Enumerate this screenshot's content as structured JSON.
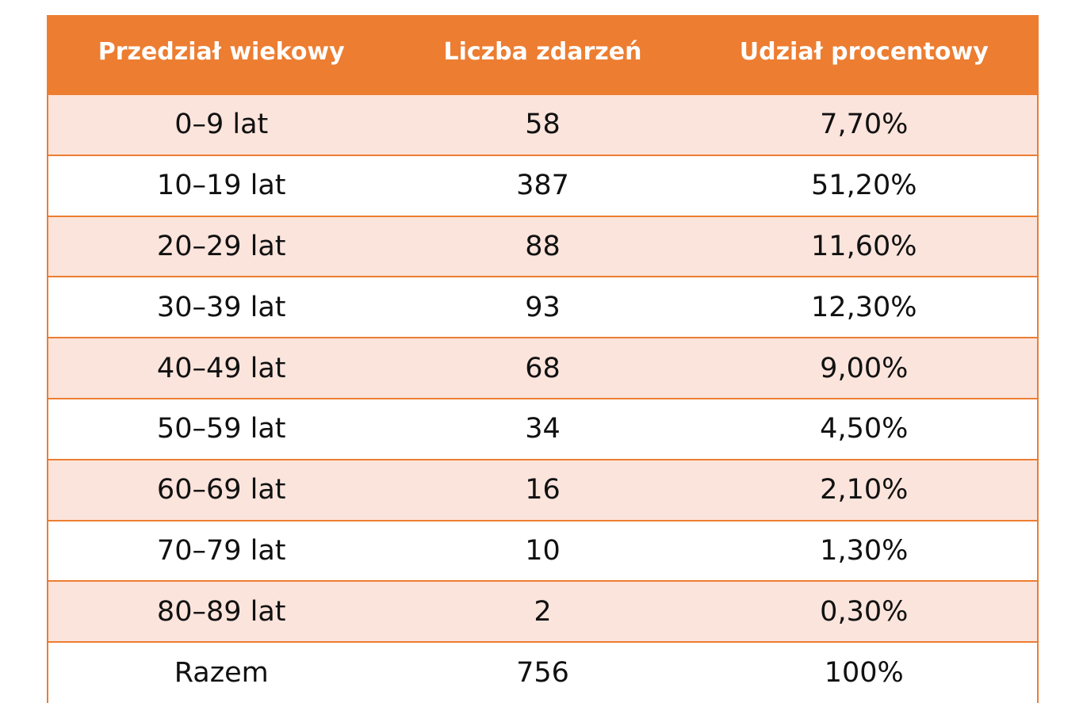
{
  "chart_data": {
    "type": "table",
    "columns": [
      "Przedział wiekowy",
      "Liczba zdarzeń",
      "Udział procentowy"
    ],
    "rows": [
      [
        "0–9 lat",
        "58",
        "7,70%"
      ],
      [
        "10–19 lat",
        "387",
        "51,20%"
      ],
      [
        "20–29 lat",
        "88",
        "11,60%"
      ],
      [
        "30–39 lat",
        "93",
        "12,30%"
      ],
      [
        "40–49 lat",
        "68",
        "9,00%"
      ],
      [
        "50–59 lat",
        "34",
        "4,50%"
      ],
      [
        "60–69 lat",
        "16",
        "2,10%"
      ],
      [
        "70–79 lat",
        "10",
        "1,30%"
      ],
      [
        "80–89 lat",
        "2",
        "0,30%"
      ],
      [
        "Razem",
        "756",
        "100%"
      ]
    ],
    "header_color": "#ED7D31",
    "header_text_color": "#FFFFFF",
    "stripe_color": "#FBE4DC",
    "border_color": "#ED7D31"
  }
}
